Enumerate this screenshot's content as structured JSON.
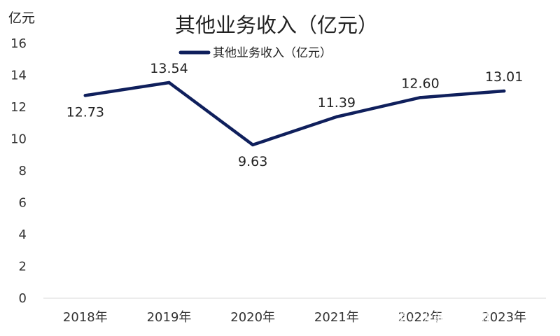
{
  "chart_data": {
    "type": "line",
    "title": "其他业务收入（亿元）",
    "unit_label": "亿元",
    "categories": [
      "2018年",
      "2019年",
      "2020年",
      "2021年",
      "2022年",
      "2023年"
    ],
    "series": [
      {
        "name": "其他业务收入（亿元）",
        "values": [
          12.73,
          13.54,
          9.63,
          11.39,
          12.6,
          13.01
        ]
      }
    ],
    "data_labels": [
      "12.73",
      "13.54",
      "9.63",
      "11.39",
      "12.60",
      "13.01"
    ],
    "ylim": [
      0,
      16
    ],
    "yticks": [
      "0",
      "2",
      "4",
      "6",
      "8",
      "10",
      "12",
      "14",
      "16"
    ],
    "grid": false,
    "legend_position": "top",
    "line_color": "#0f1f5c"
  },
  "watermark": {
    "text": "雪球 · 大航海花园"
  }
}
